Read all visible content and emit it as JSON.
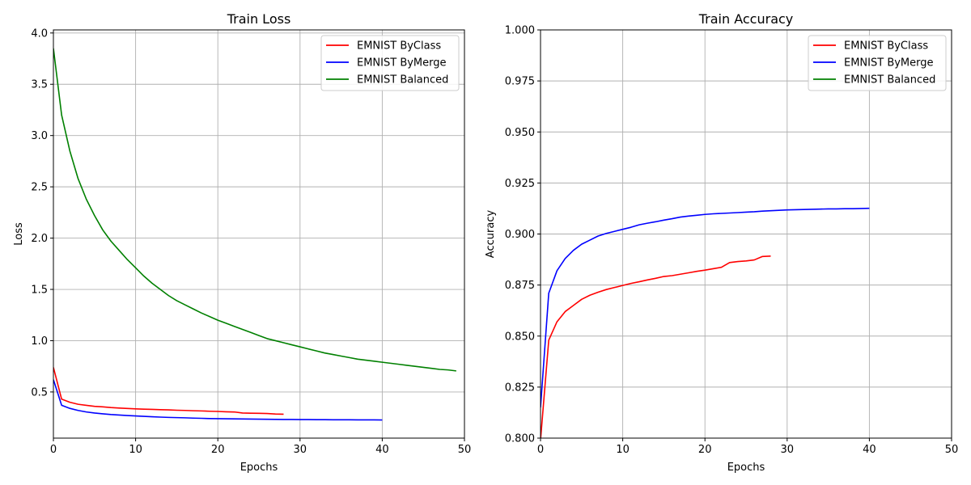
{
  "chart_data": [
    {
      "type": "line",
      "title": "Train Loss",
      "xlabel": "Epochs",
      "ylabel": "Loss",
      "xlim": [
        0,
        50
      ],
      "ylim": [
        0.05,
        4.03
      ],
      "xticks": [
        0,
        10,
        20,
        30,
        40,
        50
      ],
      "yticks": [
        0.5,
        1.0,
        1.5,
        2.0,
        2.5,
        3.0,
        3.5,
        4.0
      ],
      "ytick_labels": [
        "0.5",
        "1.0",
        "1.5",
        "2.0",
        "2.5",
        "3.0",
        "3.5",
        "4.0"
      ],
      "grid": true,
      "legend": "top-right",
      "series": [
        {
          "name": "EMNIST ByClass",
          "color": "#ff0000",
          "x": [
            0,
            1,
            2,
            3,
            4,
            5,
            6,
            7,
            8,
            9,
            10,
            11,
            12,
            13,
            14,
            15,
            16,
            17,
            18,
            19,
            20,
            21,
            22,
            23,
            24,
            25,
            26,
            27,
            28
          ],
          "values": [
            0.74,
            0.43,
            0.4,
            0.38,
            0.37,
            0.36,
            0.355,
            0.348,
            0.343,
            0.339,
            0.335,
            0.332,
            0.33,
            0.327,
            0.325,
            0.322,
            0.32,
            0.317,
            0.315,
            0.312,
            0.31,
            0.307,
            0.305,
            0.295,
            0.293,
            0.292,
            0.29,
            0.285,
            0.283
          ]
        },
        {
          "name": "EMNIST ByMerge",
          "color": "#0000ff",
          "x": [
            0,
            1,
            2,
            3,
            4,
            5,
            6,
            7,
            8,
            9,
            10,
            11,
            12,
            13,
            14,
            15,
            16,
            17,
            18,
            19,
            20,
            21,
            22,
            23,
            24,
            25,
            26,
            27,
            28,
            29,
            30,
            31,
            32,
            33,
            34,
            35,
            36,
            37,
            38,
            39,
            40
          ],
          "values": [
            0.62,
            0.37,
            0.34,
            0.32,
            0.305,
            0.295,
            0.287,
            0.28,
            0.275,
            0.27,
            0.266,
            0.262,
            0.258,
            0.255,
            0.252,
            0.25,
            0.248,
            0.245,
            0.243,
            0.241,
            0.24,
            0.239,
            0.238,
            0.237,
            0.236,
            0.235,
            0.234,
            0.233,
            0.232,
            0.232,
            0.231,
            0.231,
            0.23,
            0.23,
            0.229,
            0.229,
            0.229,
            0.228,
            0.228,
            0.228,
            0.227
          ]
        },
        {
          "name": "EMNIST Balanced",
          "color": "#008000",
          "x": [
            0,
            1,
            2,
            3,
            4,
            5,
            6,
            7,
            8,
            9,
            10,
            11,
            12,
            13,
            14,
            15,
            16,
            17,
            18,
            19,
            20,
            21,
            22,
            23,
            24,
            25,
            26,
            27,
            28,
            29,
            30,
            31,
            32,
            33,
            34,
            35,
            36,
            37,
            38,
            39,
            40,
            41,
            42,
            43,
            44,
            45,
            46,
            47,
            48,
            49
          ],
          "values": [
            3.85,
            3.2,
            2.85,
            2.58,
            2.38,
            2.22,
            2.08,
            1.97,
            1.88,
            1.79,
            1.71,
            1.63,
            1.56,
            1.5,
            1.44,
            1.39,
            1.35,
            1.31,
            1.27,
            1.235,
            1.2,
            1.17,
            1.14,
            1.11,
            1.08,
            1.05,
            1.02,
            1.0,
            0.98,
            0.96,
            0.94,
            0.92,
            0.9,
            0.88,
            0.865,
            0.85,
            0.835,
            0.82,
            0.81,
            0.8,
            0.79,
            0.78,
            0.77,
            0.76,
            0.75,
            0.74,
            0.73,
            0.72,
            0.715,
            0.705
          ]
        }
      ]
    },
    {
      "type": "line",
      "title": "Train Accuracy",
      "xlabel": "Epochs",
      "ylabel": "Accuracy",
      "xlim": [
        0,
        50
      ],
      "ylim": [
        0.8,
        1.0
      ],
      "xticks": [
        0,
        10,
        20,
        30,
        40,
        50
      ],
      "yticks": [
        0.8,
        0.825,
        0.85,
        0.875,
        0.9,
        0.925,
        0.95,
        0.975,
        1.0
      ],
      "ytick_labels": [
        "0.800",
        "0.825",
        "0.850",
        "0.875",
        "0.900",
        "0.925",
        "0.950",
        "0.975",
        "1.000"
      ],
      "grid": true,
      "legend": "top-right",
      "series": [
        {
          "name": "EMNIST ByClass",
          "color": "#ff0000",
          "x": [
            0,
            1,
            2,
            3,
            4,
            5,
            6,
            7,
            8,
            9,
            10,
            11,
            12,
            13,
            14,
            15,
            16,
            17,
            18,
            19,
            20,
            21,
            22,
            23,
            24,
            25,
            26,
            27,
            28
          ],
          "values": [
            0.799,
            0.848,
            0.857,
            0.862,
            0.865,
            0.868,
            0.87,
            0.8715,
            0.8728,
            0.8738,
            0.8748,
            0.8758,
            0.8766,
            0.8775,
            0.8783,
            0.8792,
            0.8796,
            0.8803,
            0.881,
            0.8817,
            0.8823,
            0.883,
            0.8837,
            0.886,
            0.8865,
            0.8868,
            0.8873,
            0.889,
            0.8892
          ]
        },
        {
          "name": "EMNIST ByMerge",
          "color": "#0000ff",
          "x": [
            0,
            1,
            2,
            3,
            4,
            5,
            6,
            7,
            8,
            9,
            10,
            11,
            12,
            13,
            14,
            15,
            16,
            17,
            18,
            19,
            20,
            21,
            22,
            23,
            24,
            25,
            26,
            27,
            28,
            29,
            30,
            31,
            32,
            33,
            34,
            35,
            36,
            37,
            38,
            39,
            40
          ],
          "values": [
            0.815,
            0.871,
            0.882,
            0.888,
            0.892,
            0.895,
            0.897,
            0.899,
            0.9003,
            0.9013,
            0.9023,
            0.9033,
            0.9045,
            0.9053,
            0.906,
            0.9068,
            0.9075,
            0.9083,
            0.9088,
            0.9092,
            0.9096,
            0.9099,
            0.9101,
            0.9103,
            0.9105,
            0.9107,
            0.9109,
            0.9112,
            0.9114,
            0.9116,
            0.9118,
            0.9119,
            0.912,
            0.9121,
            0.9122,
            0.9123,
            0.9123,
            0.9124,
            0.9124,
            0.9125,
            0.9126
          ]
        },
        {
          "name": "EMNIST Balanced",
          "color": "#008000",
          "x": [],
          "values": []
        }
      ]
    }
  ]
}
